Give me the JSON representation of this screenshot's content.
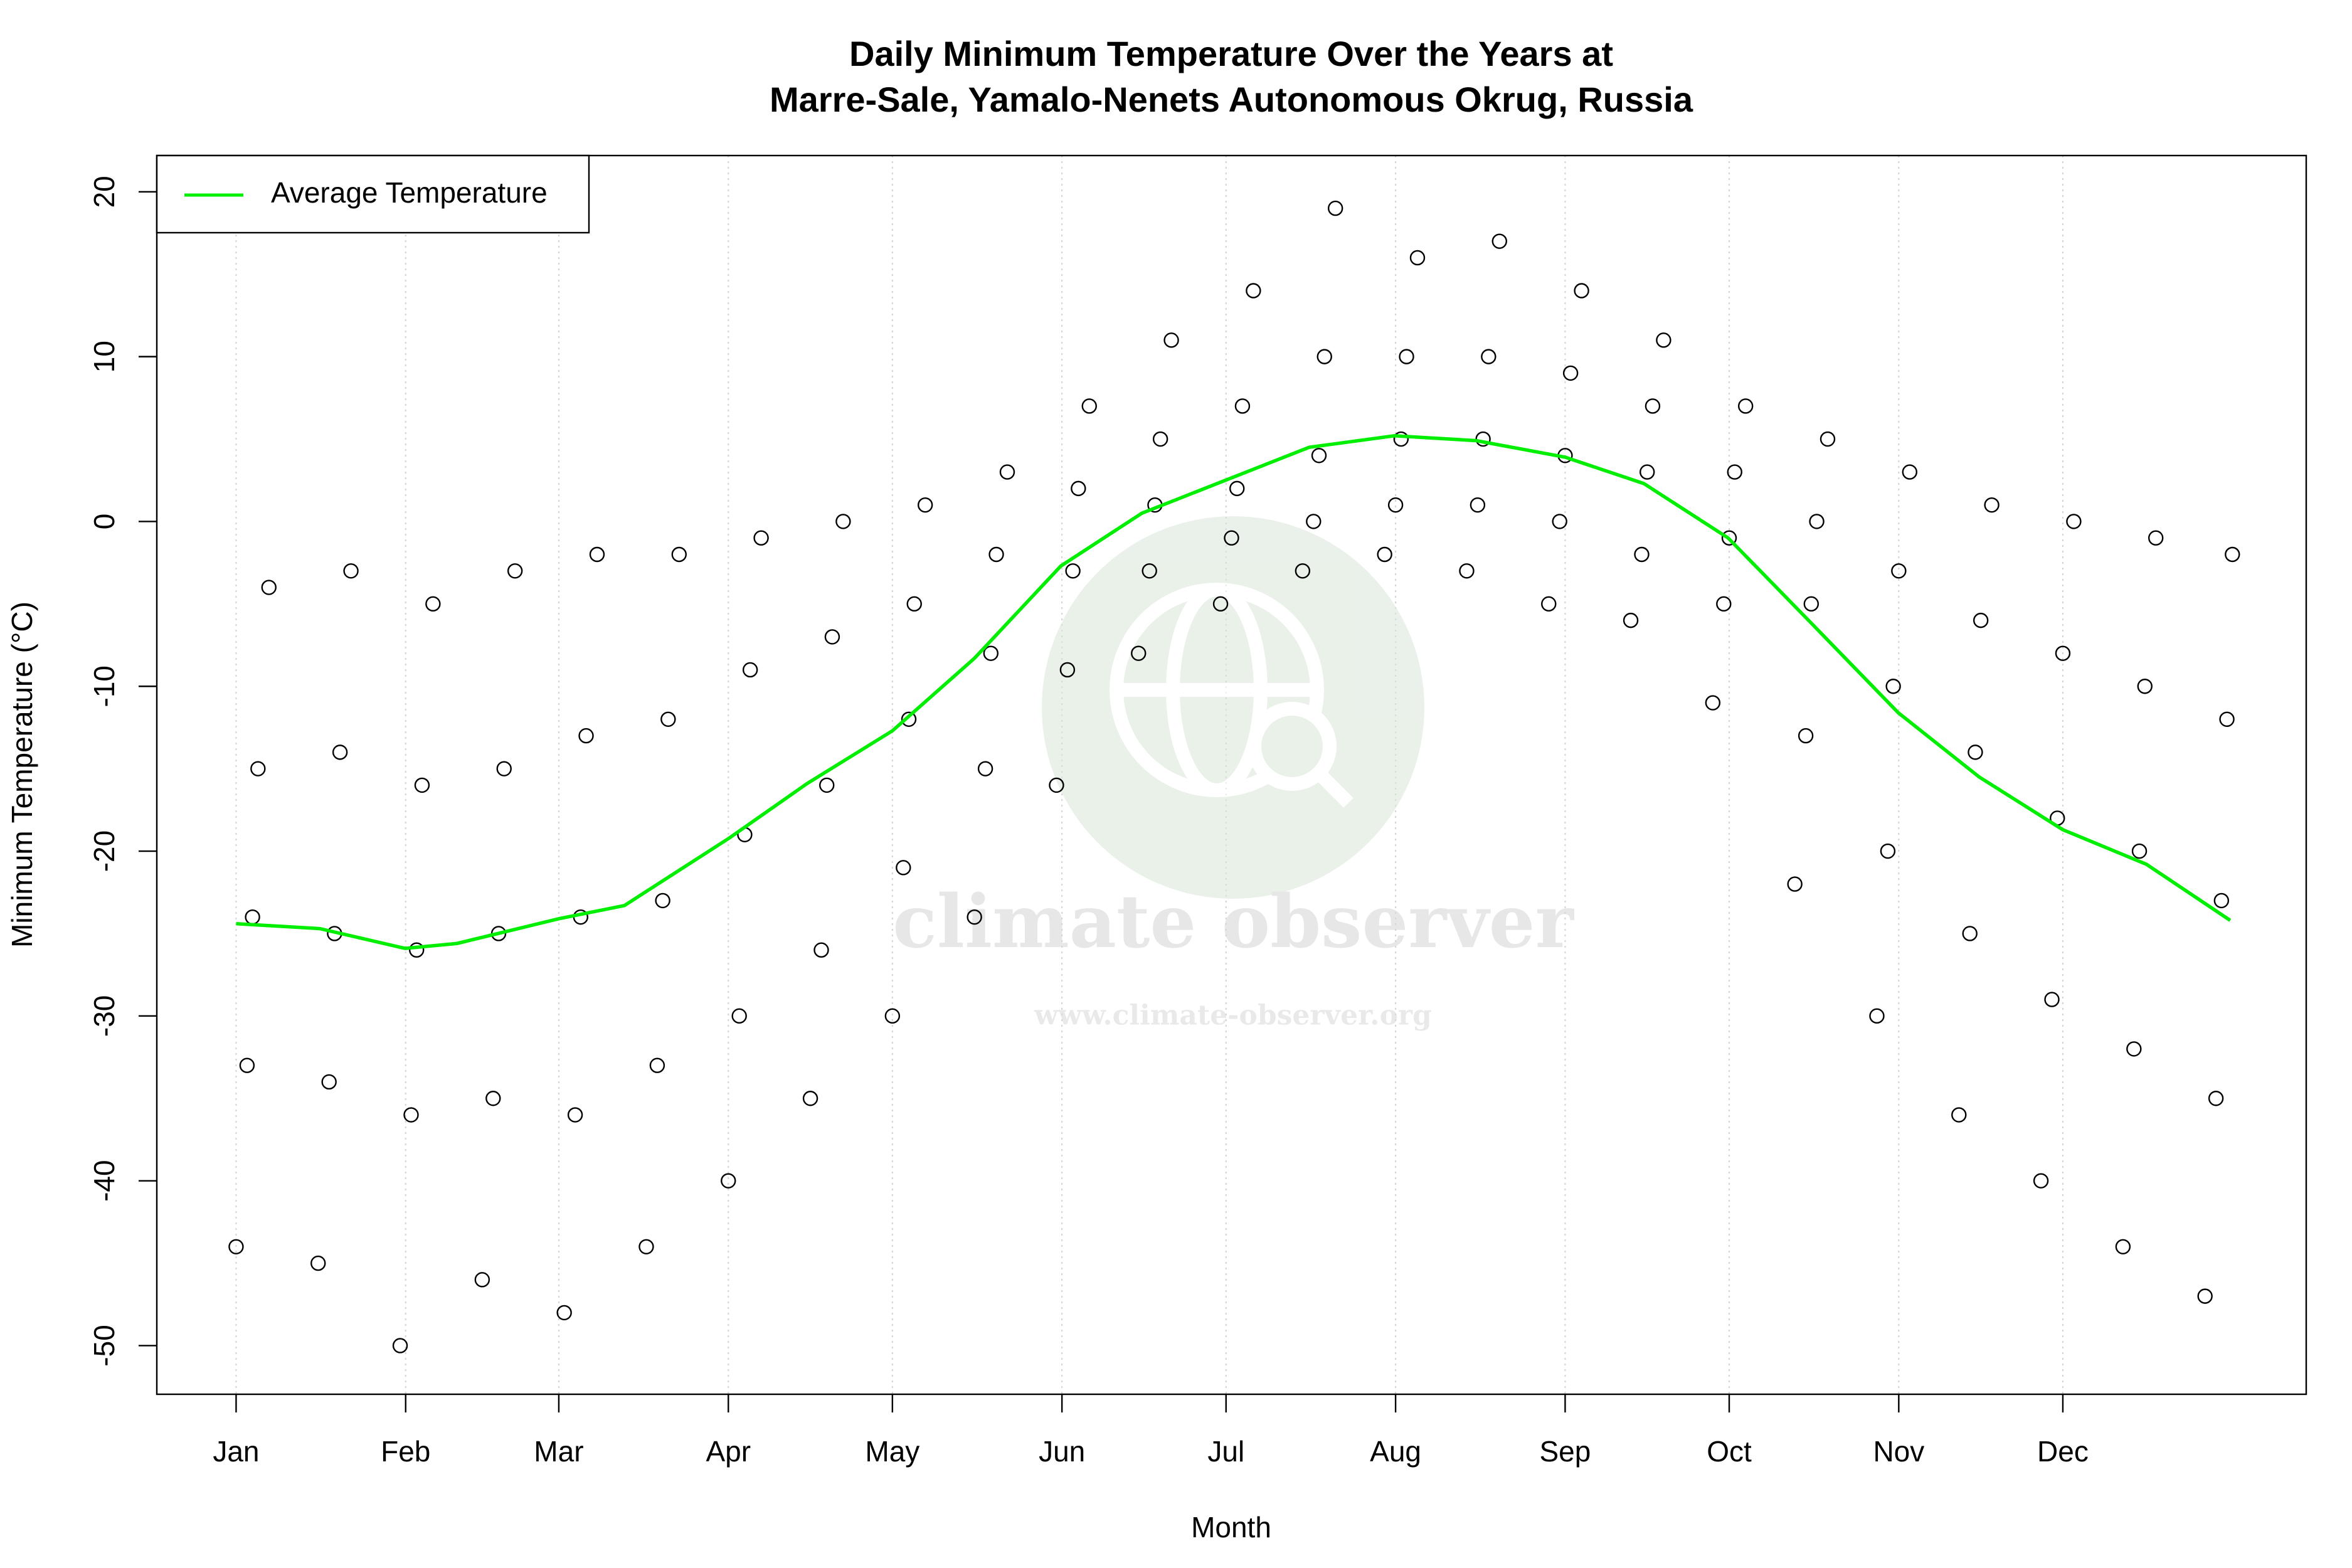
{
  "chart_data": {
    "type": "scatter",
    "title": [
      "Daily Minimum Temperature Over the Years at",
      "Marre-Sale, Yamalo-Nenets Autonomous Okrug, Russia"
    ],
    "xlabel": "Month",
    "ylabel": "Minimum Temperature (°C)",
    "xlim": [
      -13.5,
      379.5
    ],
    "ylim": [
      -52.95,
      22.2
    ],
    "xticks": [
      {
        "value": 1,
        "label": "Jan"
      },
      {
        "value": 32,
        "label": "Feb"
      },
      {
        "value": 60,
        "label": "Mar"
      },
      {
        "value": 91,
        "label": "Apr"
      },
      {
        "value": 121,
        "label": "May"
      },
      {
        "value": 152,
        "label": "Jun"
      },
      {
        "value": 182,
        "label": "Jul"
      },
      {
        "value": 213,
        "label": "Aug"
      },
      {
        "value": 244,
        "label": "Sep"
      },
      {
        "value": 274,
        "label": "Oct"
      },
      {
        "value": 305,
        "label": "Nov"
      },
      {
        "value": 335,
        "label": "Dec"
      }
    ],
    "yticks": [
      -50,
      -40,
      -30,
      -20,
      -10,
      0,
      10,
      20
    ],
    "grid": "x",
    "legend": "top-left",
    "watermark": {
      "title": "climate observer",
      "url": "www.climate-observer.org"
    },
    "series": [
      {
        "type": "scatter",
        "color": "#000000",
        "x": [
          1,
          3,
          4,
          5,
          7,
          16,
          18,
          19,
          20,
          22,
          31,
          33,
          34,
          35,
          37,
          46,
          48,
          49,
          50,
          52,
          61,
          63,
          64,
          65,
          67,
          76,
          78,
          79,
          80,
          82,
          91,
          93,
          94,
          95,
          97,
          106,
          108,
          109,
          110,
          112,
          121,
          123,
          124,
          125,
          127,
          136,
          138,
          139,
          140,
          142,
          151,
          153,
          154,
          155,
          157,
          166,
          168,
          169,
          170,
          172,
          181,
          183,
          184,
          185,
          187,
          196,
          198,
          199,
          200,
          202,
          211,
          213,
          214,
          215,
          217,
          226,
          228,
          229,
          230,
          232,
          241,
          243,
          244,
          245,
          247,
          256,
          258,
          259,
          260,
          262,
          271,
          273,
          274,
          275,
          277,
          286,
          288,
          289,
          290,
          292,
          301,
          303,
          304,
          305,
          307,
          316,
          318,
          319,
          320,
          322,
          331,
          333,
          334,
          335,
          337,
          346,
          348,
          349,
          350,
          352,
          361,
          363,
          364,
          365,
          366
        ],
        "values": [
          -44,
          -33,
          -24,
          -15,
          -4,
          -45,
          -34,
          -25,
          -14,
          -3,
          -50,
          -36,
          -26,
          -16,
          -5,
          -46,
          -35,
          -25,
          -15,
          -3,
          -48,
          -36,
          -24,
          -13,
          -2,
          -44,
          -33,
          -23,
          -12,
          -2,
          -40,
          -30,
          -19,
          -9,
          -1,
          -35,
          -26,
          -16,
          -7,
          0,
          -30,
          -21,
          -12,
          -5,
          1,
          -24,
          -15,
          -8,
          -2,
          3,
          -16,
          -9,
          -3,
          2,
          7,
          -8,
          -3,
          1,
          5,
          11,
          -5,
          -1,
          2,
          7,
          14,
          -3,
          0,
          4,
          10,
          19,
          -2,
          1,
          5,
          10,
          16,
          -3,
          1,
          5,
          10,
          17,
          -5,
          0,
          4,
          9,
          14,
          -6,
          -2,
          3,
          7,
          11,
          -11,
          -5,
          -1,
          3,
          7,
          -22,
          -13,
          -5,
          0,
          5,
          -30,
          -20,
          -10,
          -3,
          3,
          -36,
          -25,
          -14,
          -6,
          1,
          -40,
          -29,
          -18,
          -8,
          0,
          -44,
          -32,
          -20,
          -10,
          -1,
          -47,
          -35,
          -23,
          -12,
          -2
        ]
      },
      {
        "type": "line",
        "name": "Average Temperature",
        "color": "#00ee00",
        "x": [
          1,
          16.3,
          31.9,
          41.4,
          60,
          72,
          91.2,
          105.4,
          121,
          136,
          151.8,
          166.6,
          181.9,
          197.2,
          212.8,
          227.8,
          244,
          258.4,
          273.8,
          289.1,
          304.9,
          319.7,
          335,
          350.3,
          365.6
        ],
        "values": [
          -24.4,
          -24.7,
          -25.9,
          -25.6,
          -24.1,
          -23.3,
          -19.2,
          -15.9,
          -12.7,
          -8.3,
          -2.7,
          0.5,
          2.5,
          4.5,
          5.2,
          4.9,
          3.9,
          2.3,
          -1.0,
          -6.2,
          -11.6,
          -15.5,
          -18.7,
          -20.8,
          -24.2
        ]
      }
    ]
  }
}
